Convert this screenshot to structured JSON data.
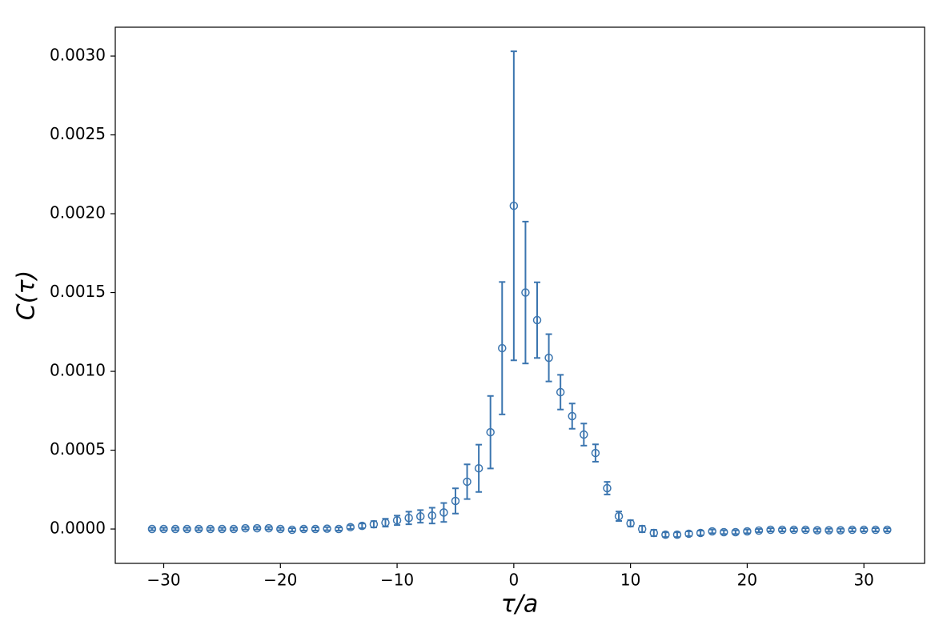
{
  "chart_data": {
    "type": "errorbar",
    "xlabel": "τ/a",
    "ylabel": "C(τ)",
    "color": "#3b75af",
    "x": [
      -31,
      -30,
      -29,
      -28,
      -27,
      -26,
      -25,
      -24,
      -23,
      -22,
      -21,
      -20,
      -19,
      -18,
      -17,
      -16,
      -15,
      -14,
      -13,
      -12,
      -11,
      -10,
      -9,
      -8,
      -7,
      -6,
      -5,
      -4,
      -3,
      -2,
      -1,
      0,
      1,
      2,
      3,
      4,
      5,
      6,
      7,
      8,
      9,
      10,
      11,
      12,
      13,
      14,
      15,
      16,
      17,
      18,
      19,
      20,
      21,
      22,
      23,
      24,
      25,
      26,
      27,
      28,
      29,
      30,
      31,
      32
    ],
    "values": [
      0,
      0,
      0,
      0,
      0,
      0,
      0,
      0,
      5e-06,
      5e-06,
      5e-06,
      0,
      -5e-06,
      0,
      0,
      2e-06,
      0,
      1.2e-05,
      2e-05,
      3e-05,
      4e-05,
      5.5e-05,
      7e-05,
      8e-05,
      8.5e-05,
      0.000105,
      0.000178,
      0.0003,
      0.000385,
      0.000614,
      0.001147,
      0.00205,
      0.0015,
      0.001325,
      0.001086,
      0.000868,
      0.000716,
      0.000599,
      0.000482,
      0.000259,
      8.1e-05,
      3.6e-05,
      0,
      -2.5e-05,
      -3.6e-05,
      -3.6e-05,
      -3e-05,
      -2.5e-05,
      -1.5e-05,
      -2e-05,
      -2e-05,
      -1.5e-05,
      -1e-05,
      -5e-06,
      -5e-06,
      -5e-06,
      -5e-06,
      -8e-06,
      -8e-06,
      -8e-06,
      -5e-06,
      -5e-06,
      -5e-06,
      -5e-06
    ],
    "errors": [
      8e-06,
      8e-06,
      8e-06,
      8e-06,
      8e-06,
      8e-06,
      8e-06,
      8e-06,
      8e-06,
      8e-06,
      8e-06,
      8e-06,
      1e-05,
      1e-05,
      1e-05,
      1e-05,
      1e-05,
      1.2e-05,
      1.5e-05,
      2e-05,
      2.5e-05,
      3e-05,
      4e-05,
      4e-05,
      5e-05,
      6e-05,
      8e-05,
      0.00011,
      0.00015,
      0.00023,
      0.00042,
      0.00098,
      0.00045,
      0.00024,
      0.00015,
      0.00011,
      8e-05,
      7e-05,
      5.5e-05,
      4e-05,
      3e-05,
      2e-05,
      2e-05,
      2e-05,
      1.5e-05,
      1.5e-05,
      1.5e-05,
      1.5e-05,
      1.2e-05,
      1.2e-05,
      1.2e-05,
      1.2e-05,
      1e-05,
      1e-05,
      1e-05,
      1e-05,
      1e-05,
      1e-05,
      1e-05,
      1e-05,
      1e-05,
      1e-05,
      1e-05,
      1e-05
    ],
    "xlim": [
      -34.15,
      35.2
    ],
    "ylim": [
      -0.000218,
      0.003183
    ],
    "xticks": [
      {
        "value": -30,
        "label": "−30"
      },
      {
        "value": -20,
        "label": "−20"
      },
      {
        "value": -10,
        "label": "−10"
      },
      0,
      10,
      20,
      30
    ],
    "yticks": [
      {
        "value": 0,
        "label": "0.0000"
      },
      {
        "value": 0.0005,
        "label": "0.0005"
      },
      {
        "value": 0.001,
        "label": "0.0010"
      },
      {
        "value": 0.0015,
        "label": "0.0015"
      },
      {
        "value": 0.002,
        "label": "0.0020"
      },
      {
        "value": 0.0025,
        "label": "0.0025"
      },
      {
        "value": 0.003,
        "label": "0.0030"
      }
    ]
  }
}
